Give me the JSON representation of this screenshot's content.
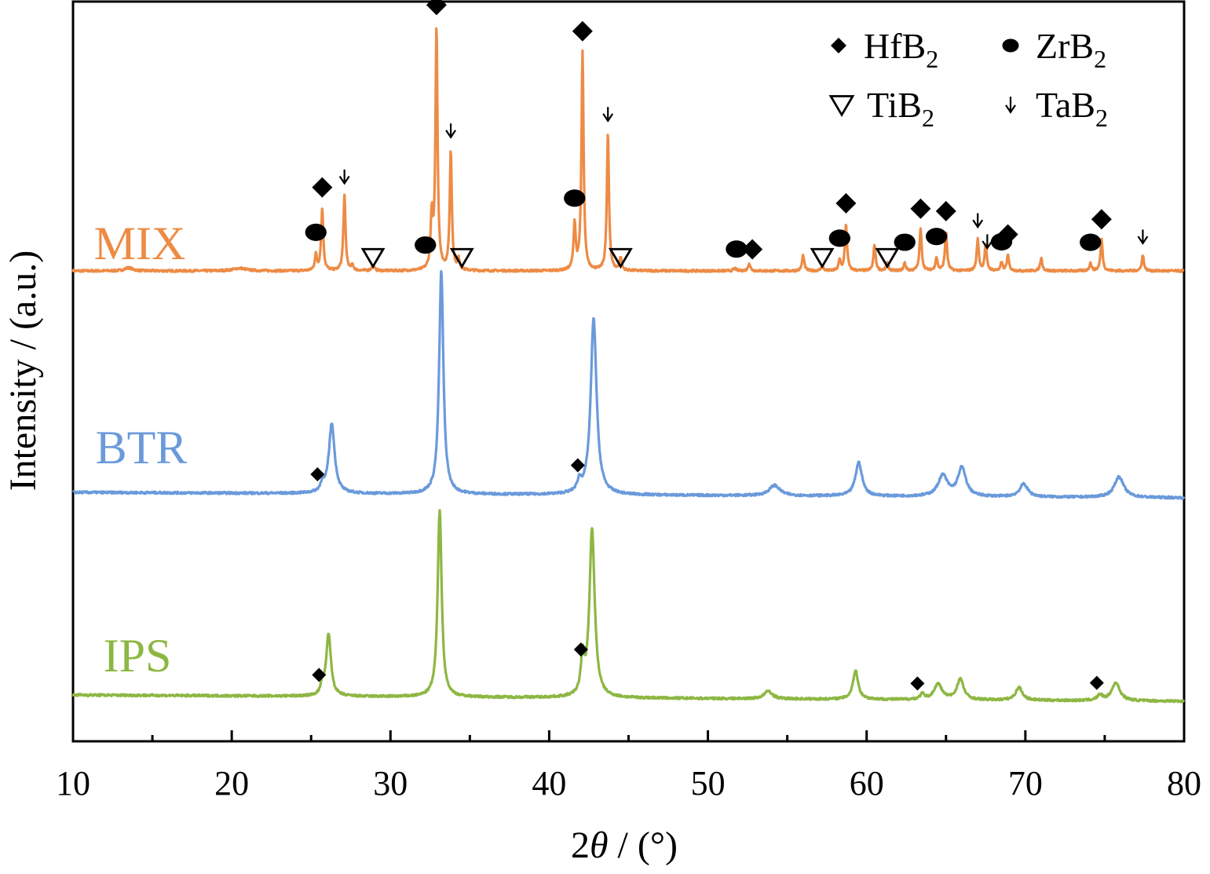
{
  "chart_data": {
    "type": "line",
    "xlabel_prefix": "2",
    "xlabel_theta": "θ",
    "xlabel_suffix": " / (°)",
    "ylabel": "Intensity / (a.u.)",
    "xlim": [
      10,
      80
    ],
    "x_ticks": [
      "10",
      "20",
      "30",
      "40",
      "50",
      "60",
      "70",
      "80"
    ],
    "grid": false,
    "legend_position": "top-right",
    "legend": [
      {
        "symbol": "diamond",
        "name": "HfB",
        "sub": "2"
      },
      {
        "symbol": "circle",
        "name": "ZrB",
        "sub": "2"
      },
      {
        "symbol": "triangle-down",
        "name": "TiB",
        "sub": "2"
      },
      {
        "symbol": "arrow-down",
        "name": "TaB",
        "sub": "2"
      }
    ],
    "series": [
      {
        "name": "MIX",
        "color": "#ED8B45",
        "peaks": [
          {
            "x": 13.5,
            "h": 0.012,
            "w": 0.3
          },
          {
            "x": 20.5,
            "h": 0.01,
            "w": 0.5
          },
          {
            "x": 25.3,
            "h": 0.06,
            "w": 0.08
          },
          {
            "x": 25.7,
            "h": 0.24,
            "w": 0.08
          },
          {
            "x": 27.1,
            "h": 0.29,
            "w": 0.08
          },
          {
            "x": 27.6,
            "h": 0.02,
            "w": 0.08
          },
          {
            "x": 28.9,
            "h": 0.02,
            "w": 0.1
          },
          {
            "x": 32.6,
            "h": 0.2,
            "w": 0.08
          },
          {
            "x": 32.9,
            "h": 0.93,
            "w": 0.08
          },
          {
            "x": 33.8,
            "h": 0.46,
            "w": 0.08
          },
          {
            "x": 34.3,
            "h": 0.04,
            "w": 0.08
          },
          {
            "x": 41.6,
            "h": 0.18,
            "w": 0.08
          },
          {
            "x": 42.1,
            "h": 0.84,
            "w": 0.08
          },
          {
            "x": 43.7,
            "h": 0.53,
            "w": 0.08
          },
          {
            "x": 44.5,
            "h": 0.05,
            "w": 0.08
          },
          {
            "x": 51.7,
            "h": 0.01,
            "w": 0.1
          },
          {
            "x": 52.6,
            "h": 0.03,
            "w": 0.08
          },
          {
            "x": 56.0,
            "h": 0.06,
            "w": 0.08
          },
          {
            "x": 57.2,
            "h": 0.02,
            "w": 0.08
          },
          {
            "x": 58.3,
            "h": 0.04,
            "w": 0.08
          },
          {
            "x": 58.7,
            "h": 0.18,
            "w": 0.08
          },
          {
            "x": 60.5,
            "h": 0.1,
            "w": 0.08
          },
          {
            "x": 61.3,
            "h": 0.03,
            "w": 0.08
          },
          {
            "x": 62.4,
            "h": 0.03,
            "w": 0.08
          },
          {
            "x": 63.4,
            "h": 0.16,
            "w": 0.08
          },
          {
            "x": 64.4,
            "h": 0.05,
            "w": 0.08
          },
          {
            "x": 65.0,
            "h": 0.15,
            "w": 0.08
          },
          {
            "x": 67.0,
            "h": 0.12,
            "w": 0.08
          },
          {
            "x": 67.5,
            "h": 0.1,
            "w": 0.08
          },
          {
            "x": 68.5,
            "h": 0.03,
            "w": 0.08
          },
          {
            "x": 68.9,
            "h": 0.06,
            "w": 0.08
          },
          {
            "x": 71.0,
            "h": 0.05,
            "w": 0.08
          },
          {
            "x": 74.1,
            "h": 0.03,
            "w": 0.08
          },
          {
            "x": 74.8,
            "h": 0.12,
            "w": 0.08
          },
          {
            "x": 77.4,
            "h": 0.06,
            "w": 0.08
          }
        ]
      },
      {
        "name": "BTR",
        "color": "#6A9ADB",
        "peaks": [
          {
            "x": 25.7,
            "h": 0.03,
            "w": 0.12
          },
          {
            "x": 26.3,
            "h": 0.27,
            "w": 0.22
          },
          {
            "x": 33.2,
            "h": 0.86,
            "w": 0.16
          },
          {
            "x": 41.9,
            "h": 0.04,
            "w": 0.15
          },
          {
            "x": 42.8,
            "h": 0.68,
            "w": 0.22
          },
          {
            "x": 54.2,
            "h": 0.04,
            "w": 0.4
          },
          {
            "x": 59.5,
            "h": 0.13,
            "w": 0.25
          },
          {
            "x": 64.8,
            "h": 0.08,
            "w": 0.35
          },
          {
            "x": 66.0,
            "h": 0.11,
            "w": 0.3
          },
          {
            "x": 69.9,
            "h": 0.05,
            "w": 0.3
          },
          {
            "x": 75.9,
            "h": 0.08,
            "w": 0.35
          }
        ]
      },
      {
        "name": "IPS",
        "color": "#8DB743",
        "peaks": [
          {
            "x": 25.7,
            "h": 0.04,
            "w": 0.1
          },
          {
            "x": 26.1,
            "h": 0.24,
            "w": 0.18
          },
          {
            "x": 33.1,
            "h": 0.72,
            "w": 0.15
          },
          {
            "x": 42.1,
            "h": 0.14,
            "w": 0.12
          },
          {
            "x": 42.7,
            "h": 0.65,
            "w": 0.2
          },
          {
            "x": 53.8,
            "h": 0.03,
            "w": 0.3
          },
          {
            "x": 59.3,
            "h": 0.11,
            "w": 0.2
          },
          {
            "x": 63.5,
            "h": 0.02,
            "w": 0.15
          },
          {
            "x": 64.5,
            "h": 0.06,
            "w": 0.3
          },
          {
            "x": 65.9,
            "h": 0.08,
            "w": 0.25
          },
          {
            "x": 69.6,
            "h": 0.05,
            "w": 0.25
          },
          {
            "x": 74.7,
            "h": 0.02,
            "w": 0.2
          },
          {
            "x": 75.7,
            "h": 0.07,
            "w": 0.3
          }
        ]
      }
    ],
    "phase_markers": [
      {
        "series": "MIX",
        "phase": "HfB2",
        "symbol": "diamond",
        "x": [
          25.7,
          32.9,
          42.1,
          52.8,
          58.7,
          63.4,
          65.0,
          68.9,
          74.8
        ]
      },
      {
        "series": "MIX",
        "phase": "ZrB2",
        "symbol": "circle",
        "x": [
          25.3,
          32.2,
          41.6,
          51.8,
          58.3,
          62.4,
          64.4,
          68.5,
          74.1
        ]
      },
      {
        "series": "MIX",
        "phase": "TiB2",
        "symbol": "triangle-down",
        "x": [
          28.9,
          34.5,
          44.5,
          57.2,
          61.3
        ]
      },
      {
        "series": "MIX",
        "phase": "TaB2",
        "symbol": "arrow-down",
        "x": [
          27.1,
          33.8,
          43.7,
          67.0,
          67.6,
          77.4
        ]
      },
      {
        "series": "BTR",
        "phase": "HfB2",
        "symbol": "diamond",
        "x": [
          25.4,
          41.8
        ]
      },
      {
        "series": "IPS",
        "phase": "HfB2",
        "symbol": "diamond",
        "x": [
          25.5,
          42.0,
          63.2,
          74.5
        ]
      }
    ]
  }
}
